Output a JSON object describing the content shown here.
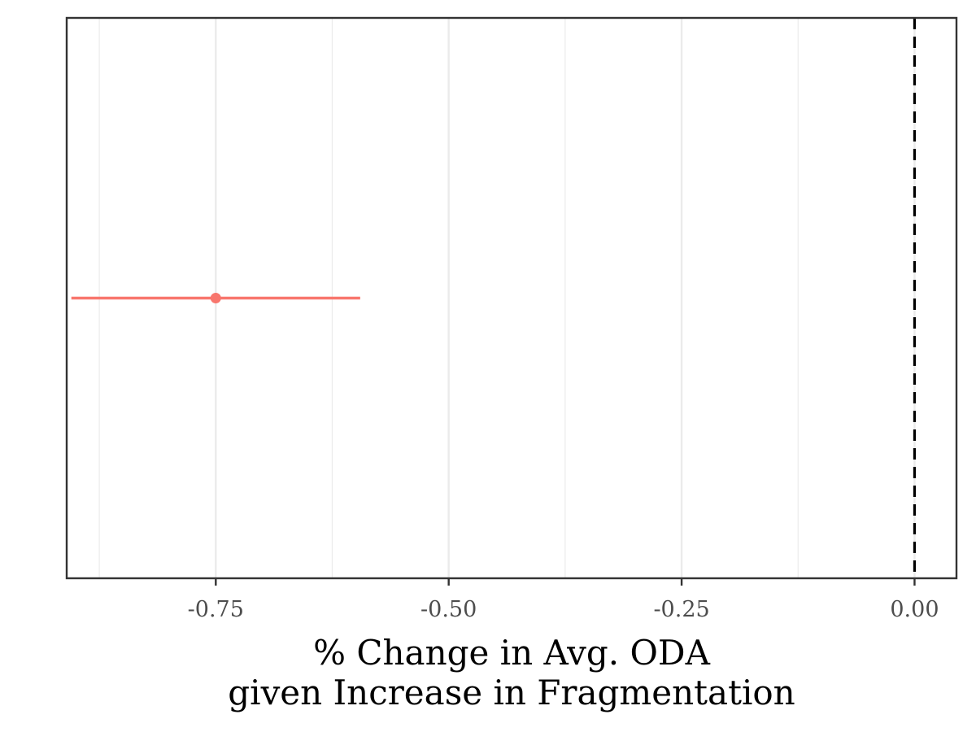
{
  "chart_data": {
    "type": "scatter",
    "title": "",
    "xlabel_lines": [
      "% Change in Avg. ODA",
      "given Increase in Fragmentation"
    ],
    "ylabel": "",
    "xlim": [
      -0.91,
      0.045
    ],
    "x_ticks": [
      -0.75,
      -0.5,
      -0.25,
      0.0
    ],
    "x_tick_labels": [
      "-0.75",
      "-0.50",
      "-0.25",
      "0.00"
    ],
    "x_minor_gridlines": [
      -0.875,
      -0.625,
      -0.375,
      -0.125
    ],
    "grid": true,
    "reference_line": {
      "x": 0.0,
      "style": "dashed",
      "color": "#000000"
    },
    "points": [
      {
        "estimate": -0.75,
        "ci_low": -0.905,
        "ci_high": -0.595,
        "color": "#F8766D"
      }
    ]
  }
}
